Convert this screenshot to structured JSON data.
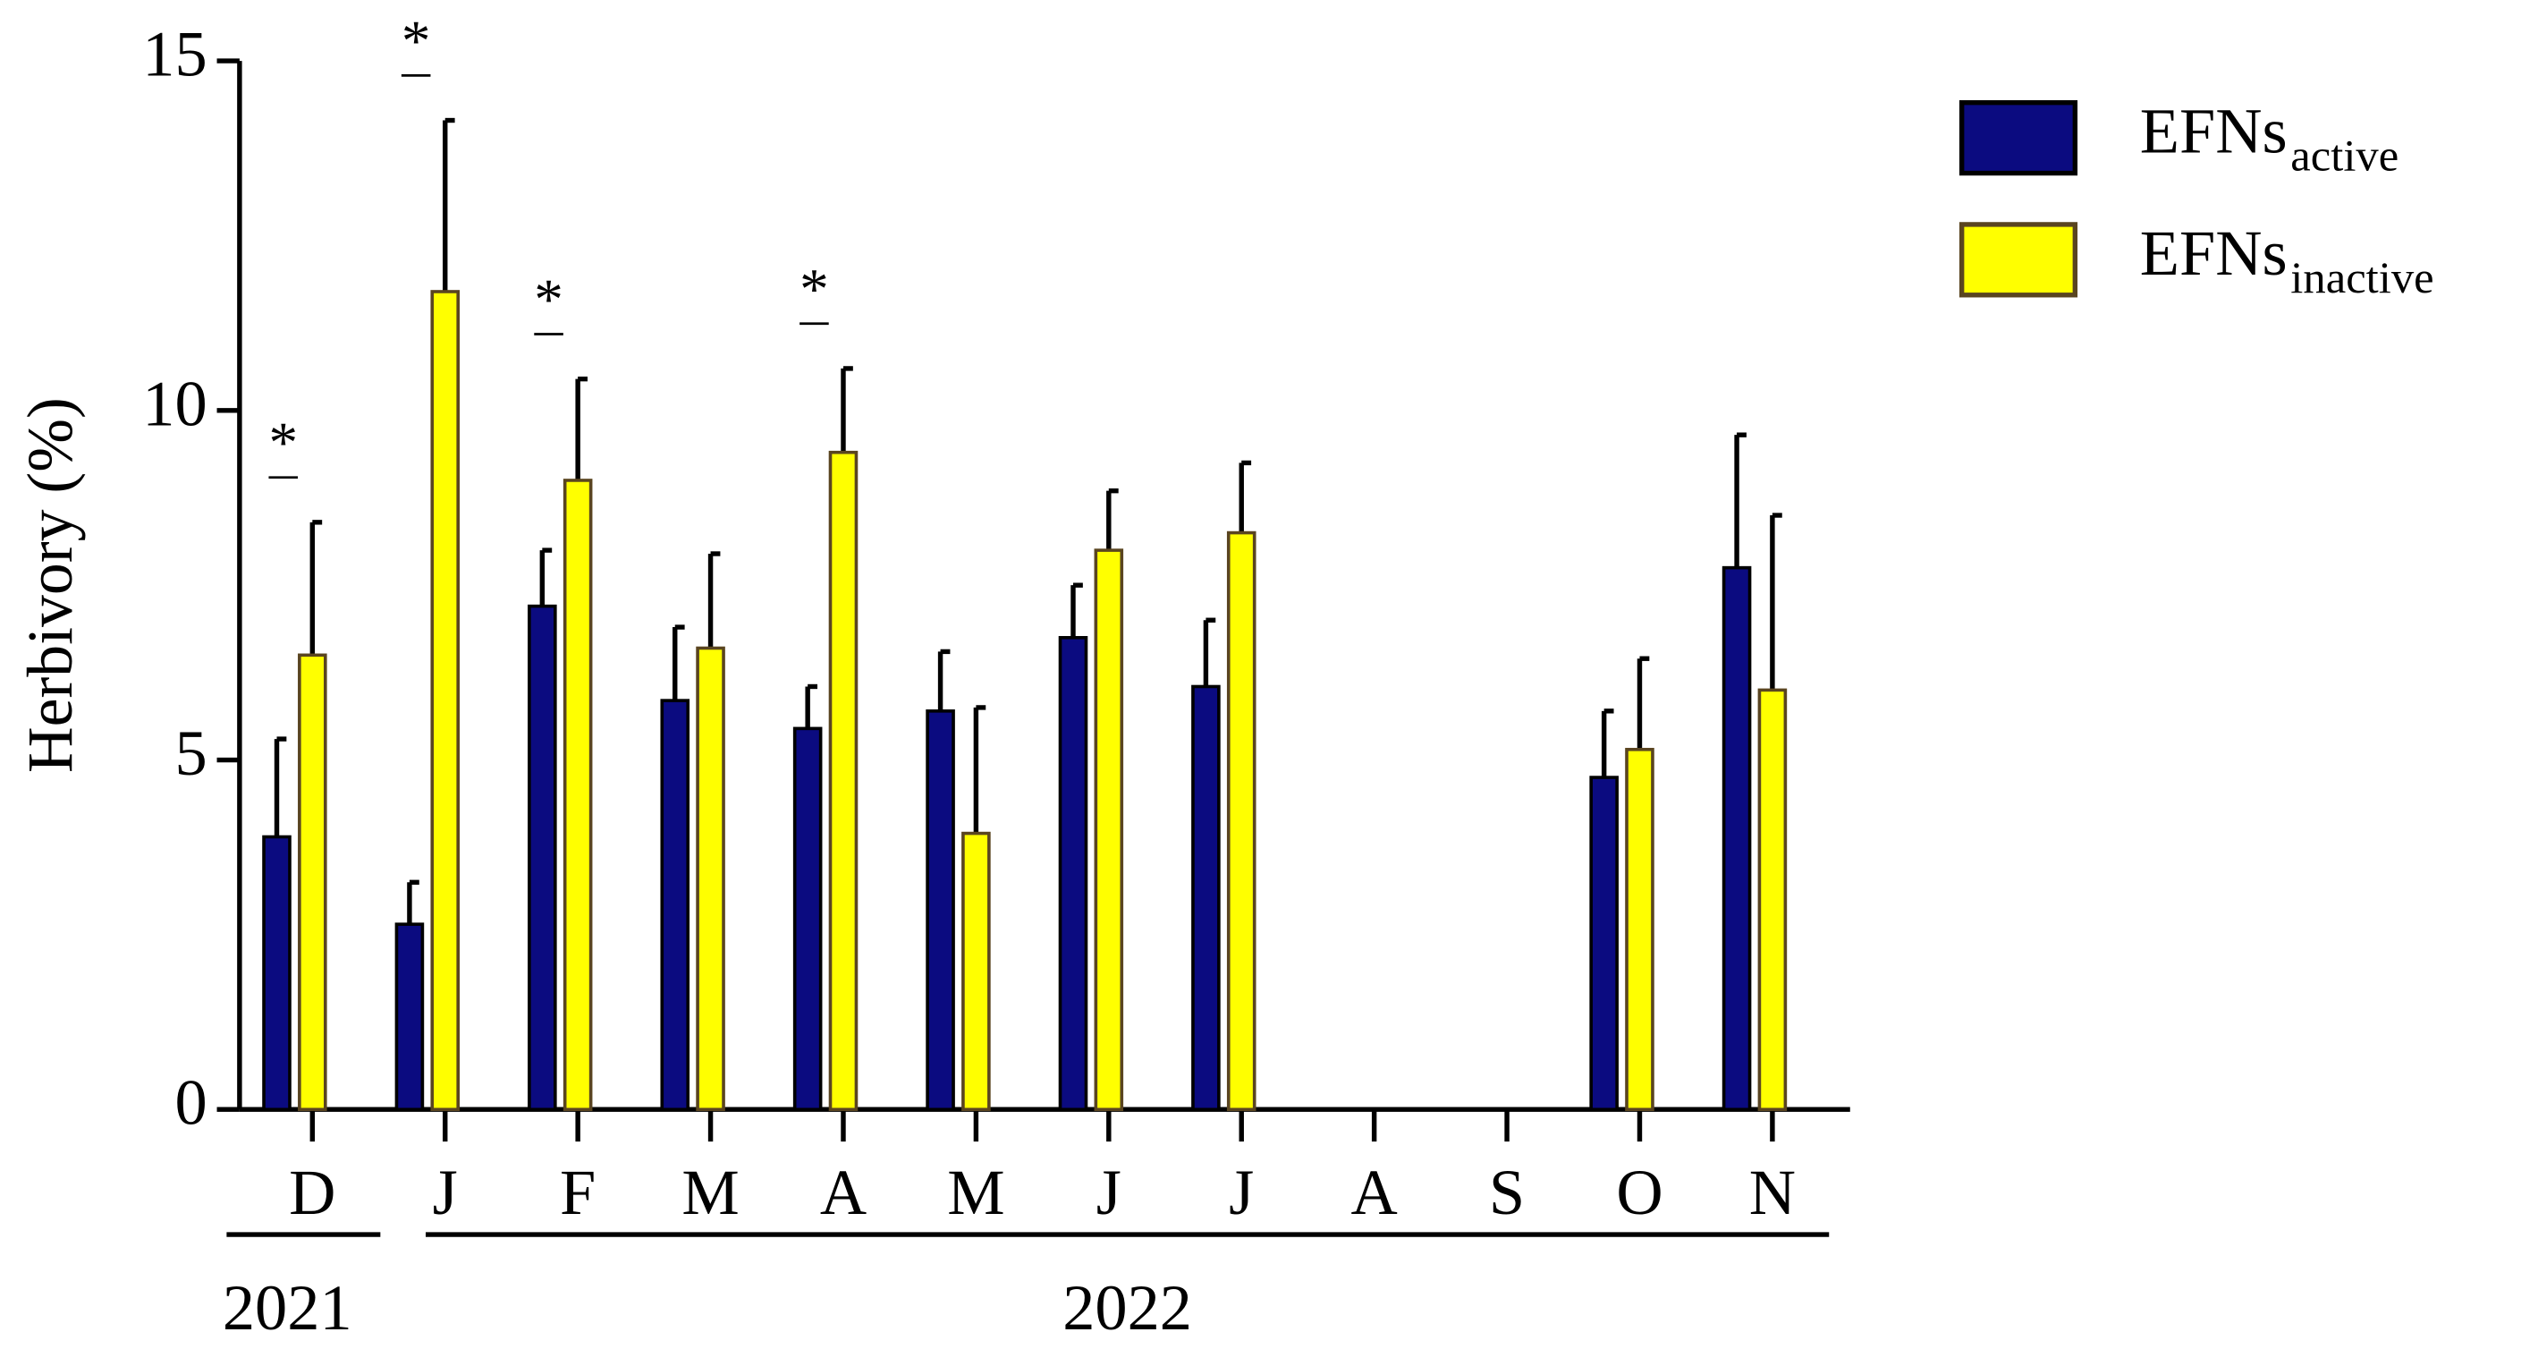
{
  "chart_data": {
    "type": "bar",
    "y_label": "Herbivory (%)",
    "categories": [
      "D",
      "J",
      "F",
      "M",
      "A",
      "M",
      "J",
      "J",
      "A",
      "S",
      "O",
      "N"
    ],
    "x_groups": [
      {
        "label": "2021",
        "count": 1
      },
      {
        "label": "2022",
        "count": 11
      }
    ],
    "significance": [
      "*",
      "*",
      "*",
      null,
      "*",
      null,
      null,
      null,
      null,
      null,
      null,
      null
    ],
    "series": [
      {
        "name": "EFNs",
        "name_subscript": "active",
        "color": "#0b0b80",
        "values": [
          3.9,
          2.65,
          7.2,
          5.85,
          5.45,
          5.7,
          6.75,
          6.05,
          null,
          null,
          4.75,
          7.75
        ],
        "errors": [
          1.4,
          0.6,
          0.8,
          1.05,
          0.6,
          0.85,
          0.75,
          0.95,
          null,
          null,
          0.95,
          1.9
        ]
      },
      {
        "name": "EFNs",
        "name_subscript": "inactive",
        "color": "#ffff00",
        "values": [
          6.5,
          11.7,
          9.0,
          6.6,
          9.4,
          3.95,
          8.0,
          8.25,
          null,
          null,
          5.15,
          6.0
        ],
        "errors": [
          1.9,
          2.45,
          1.45,
          1.35,
          1.2,
          1.8,
          0.85,
          1.0,
          null,
          null,
          1.3,
          2.5
        ]
      }
    ],
    "ylim": [
      0,
      15
    ],
    "yticks": [
      0,
      5,
      10,
      15
    ],
    "legend": "top-right"
  }
}
